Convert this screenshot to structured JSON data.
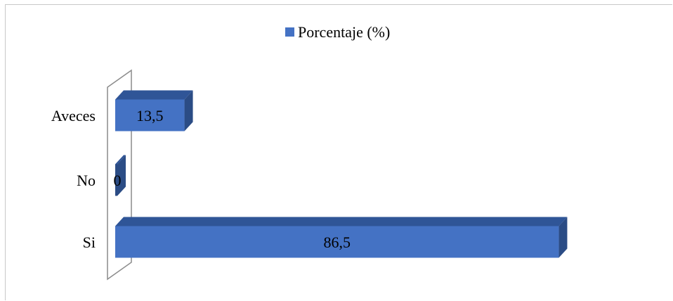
{
  "chart_data": {
    "type": "bar",
    "orientation": "horizontal",
    "style": "3d",
    "categories": [
      "Aveces",
      "No",
      "Si"
    ],
    "series": [
      {
        "name": "Porcentaje (%)",
        "values": [
          13.5,
          0,
          86.5
        ]
      }
    ],
    "data_labels": [
      "13,5",
      "0",
      "86,5"
    ],
    "xlim": [
      0,
      100
    ],
    "grid": false,
    "legend": "top-center"
  },
  "colors": {
    "bar_front": "#4472c4",
    "bar_top": "#2f5597",
    "bar_side": "#2b4c85",
    "legend_swatch": "#4472c4",
    "axis_wall": "#8c8c8c"
  }
}
